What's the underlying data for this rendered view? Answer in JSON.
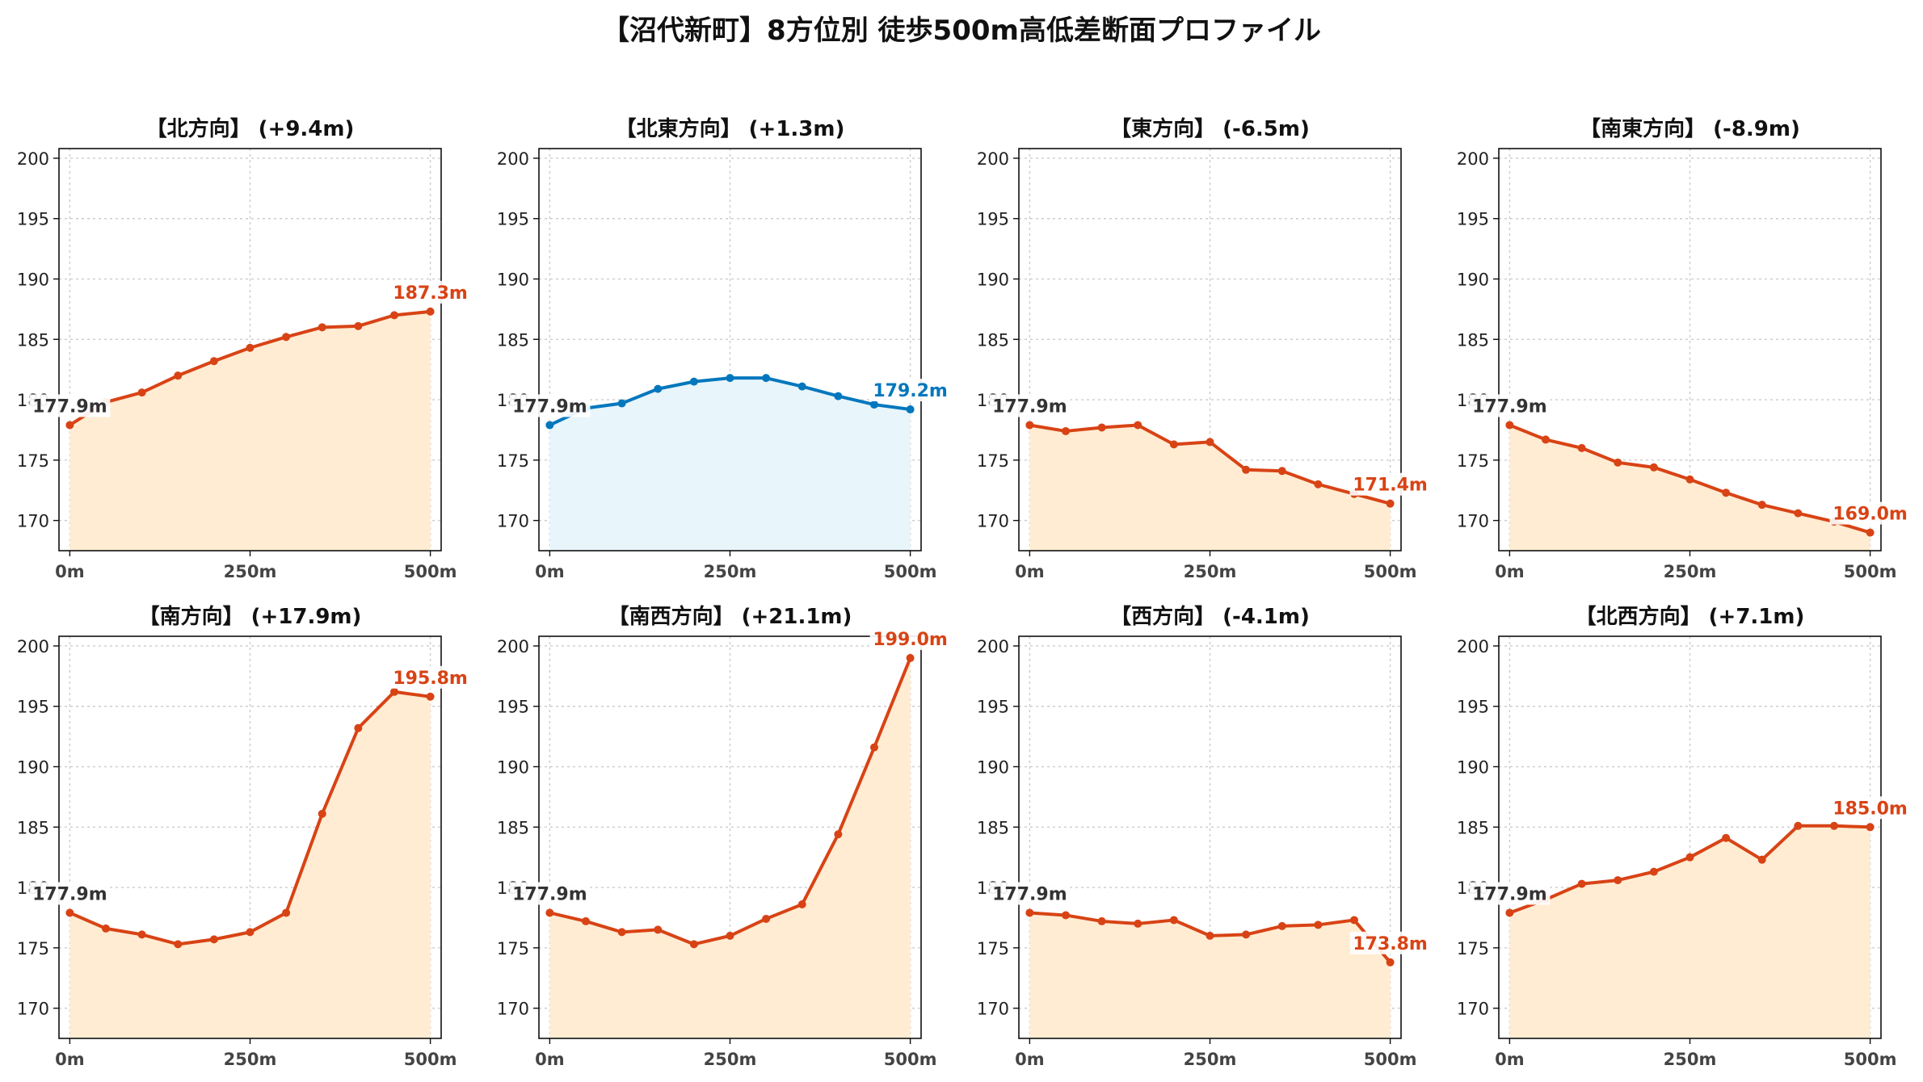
{
  "page": {
    "title": "【沼代新町】8方位別 徒歩500m高低差断面プロファイル"
  },
  "colors": {
    "up": "#d84315",
    "up_fill": "#ffecd2",
    "flat": "#0277bd",
    "flat_fill": "#e8f5fb",
    "start_label": "#333333"
  },
  "chart_data": [
    {
      "type": "area",
      "title": "【北方向】 (+9.4m)",
      "x": [
        0,
        50,
        100,
        150,
        200,
        250,
        300,
        350,
        400,
        450,
        500
      ],
      "values": [
        177.9,
        179.8,
        180.6,
        182.0,
        183.2,
        184.3,
        185.2,
        186.0,
        186.1,
        187.0,
        187.3
      ],
      "xticks": [
        "0m",
        "250m",
        "500m"
      ],
      "yticks": [
        170,
        175,
        180,
        185,
        190,
        195,
        200
      ],
      "ylim": [
        167.5,
        200.8
      ],
      "xlim": [
        -15,
        515
      ],
      "start_label": "177.9m",
      "end_label": "187.3m",
      "color_key": "up",
      "grid": true
    },
    {
      "type": "area",
      "title": "【北東方向】 (+1.3m)",
      "x": [
        0,
        50,
        100,
        150,
        200,
        250,
        300,
        350,
        400,
        450,
        500
      ],
      "values": [
        177.9,
        179.3,
        179.7,
        180.9,
        181.5,
        181.8,
        181.8,
        181.1,
        180.3,
        179.6,
        179.2
      ],
      "xticks": [
        "0m",
        "250m",
        "500m"
      ],
      "yticks": [
        170,
        175,
        180,
        185,
        190,
        195,
        200
      ],
      "ylim": [
        167.5,
        200.8
      ],
      "xlim": [
        -15,
        515
      ],
      "start_label": "177.9m",
      "end_label": "179.2m",
      "color_key": "flat",
      "grid": true
    },
    {
      "type": "area",
      "title": "【東方向】 (-6.5m)",
      "x": [
        0,
        50,
        100,
        150,
        200,
        250,
        300,
        350,
        400,
        450,
        500
      ],
      "values": [
        177.9,
        177.4,
        177.7,
        177.9,
        176.3,
        176.5,
        174.2,
        174.1,
        173.0,
        172.2,
        171.4
      ],
      "xticks": [
        "0m",
        "250m",
        "500m"
      ],
      "yticks": [
        170,
        175,
        180,
        185,
        190,
        195,
        200
      ],
      "ylim": [
        167.5,
        200.8
      ],
      "xlim": [
        -15,
        515
      ],
      "start_label": "177.9m",
      "end_label": "171.4m",
      "color_key": "up",
      "grid": true
    },
    {
      "type": "area",
      "title": "【南東方向】 (-8.9m)",
      "x": [
        0,
        50,
        100,
        150,
        200,
        250,
        300,
        350,
        400,
        450,
        500
      ],
      "values": [
        177.9,
        176.7,
        176.0,
        174.8,
        174.4,
        173.4,
        172.3,
        171.3,
        170.6,
        169.9,
        169.0
      ],
      "xticks": [
        "0m",
        "250m",
        "500m"
      ],
      "yticks": [
        170,
        175,
        180,
        185,
        190,
        195,
        200
      ],
      "ylim": [
        167.5,
        200.8
      ],
      "xlim": [
        -15,
        515
      ],
      "start_label": "177.9m",
      "end_label": "169.0m",
      "color_key": "up",
      "grid": true
    },
    {
      "type": "area",
      "title": "【南方向】 (+17.9m)",
      "x": [
        0,
        50,
        100,
        150,
        200,
        250,
        300,
        350,
        400,
        450,
        500
      ],
      "values": [
        177.9,
        176.6,
        176.1,
        175.3,
        175.7,
        176.3,
        177.9,
        186.1,
        193.2,
        196.2,
        195.8
      ],
      "xticks": [
        "0m",
        "250m",
        "500m"
      ],
      "yticks": [
        170,
        175,
        180,
        185,
        190,
        195,
        200
      ],
      "ylim": [
        167.5,
        200.8
      ],
      "xlim": [
        -15,
        515
      ],
      "start_label": "177.9m",
      "end_label": "195.8m",
      "color_key": "up",
      "grid": true
    },
    {
      "type": "area",
      "title": "【南西方向】 (+21.1m)",
      "x": [
        0,
        50,
        100,
        150,
        200,
        250,
        300,
        350,
        400,
        450,
        500
      ],
      "values": [
        177.9,
        177.2,
        176.3,
        176.5,
        175.3,
        176.0,
        177.4,
        178.6,
        184.4,
        191.6,
        199.0
      ],
      "xticks": [
        "0m",
        "250m",
        "500m"
      ],
      "yticks": [
        170,
        175,
        180,
        185,
        190,
        195,
        200
      ],
      "ylim": [
        167.5,
        200.8
      ],
      "xlim": [
        -15,
        515
      ],
      "start_label": "177.9m",
      "end_label": "199.0m",
      "color_key": "up",
      "grid": true
    },
    {
      "type": "area",
      "title": "【西方向】 (-4.1m)",
      "x": [
        0,
        50,
        100,
        150,
        200,
        250,
        300,
        350,
        400,
        450,
        500
      ],
      "values": [
        177.9,
        177.7,
        177.2,
        177.0,
        177.3,
        176.0,
        176.1,
        176.8,
        176.9,
        177.3,
        173.8
      ],
      "xticks": [
        "0m",
        "250m",
        "500m"
      ],
      "yticks": [
        170,
        175,
        180,
        185,
        190,
        195,
        200
      ],
      "ylim": [
        167.5,
        200.8
      ],
      "xlim": [
        -15,
        515
      ],
      "start_label": "177.9m",
      "end_label": "173.8m",
      "color_key": "up",
      "grid": true
    },
    {
      "type": "area",
      "title": "【北西方向】 (+7.1m)",
      "x": [
        0,
        50,
        100,
        150,
        200,
        250,
        300,
        350,
        400,
        450,
        500
      ],
      "values": [
        177.9,
        179.0,
        180.3,
        180.6,
        181.3,
        182.5,
        184.1,
        182.3,
        185.1,
        185.1,
        185.0
      ],
      "xticks": [
        "0m",
        "250m",
        "500m"
      ],
      "yticks": [
        170,
        175,
        180,
        185,
        190,
        195,
        200
      ],
      "ylim": [
        167.5,
        200.8
      ],
      "xlim": [
        -15,
        515
      ],
      "start_label": "177.9m",
      "end_label": "185.0m",
      "color_key": "up",
      "grid": true
    }
  ]
}
